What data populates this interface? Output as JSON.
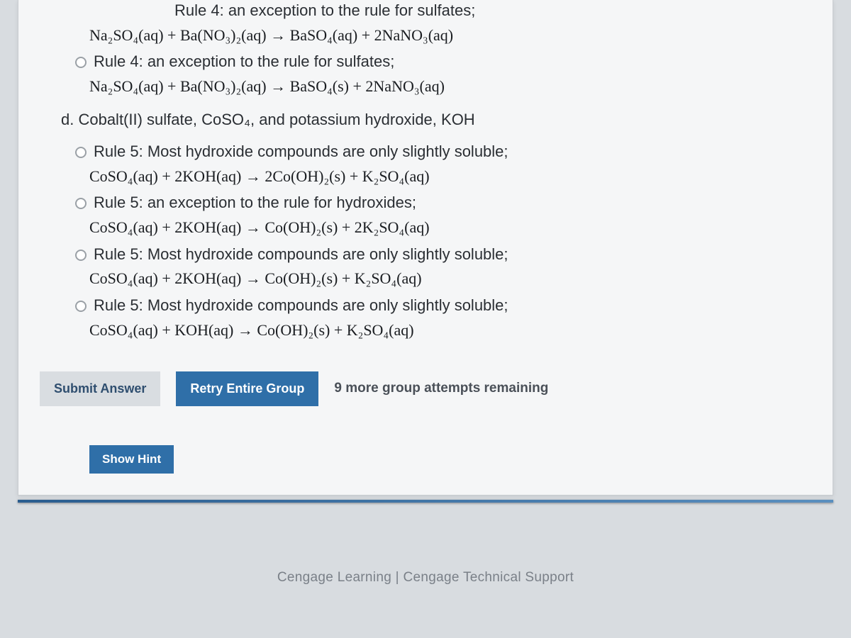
{
  "partial_top": "Rule 4: an exception to the rule for sulfates;",
  "eq_c1": "Na₂SO₄(aq) + Ba(NO₃)₂(aq) → BaSO₄(aq) + 2NaNO₃(aq)",
  "rule_c2": "Rule 4: an exception to the rule for sulfates;",
  "eq_c2": "Na₂SO₄(aq) + Ba(NO₃)₂(aq) → BaSO₄(s) + 2NaNO₃(aq)",
  "question_d": "d.  Cobalt(II) sulfate, CoSO₄, and potassium hydroxide, KOH",
  "rule_d1": "Rule 5: Most hydroxide compounds are only slightly soluble;",
  "eq_d1": "CoSO₄(aq) + 2KOH(aq) → 2Co(OH)₂(s) + K₂SO₄(aq)",
  "rule_d2": "Rule 5: an exception to the rule for hydroxides;",
  "eq_d2": "CoSO₄(aq) + 2KOH(aq) → Co(OH)₂(s) + 2K₂SO₄(aq)",
  "rule_d3": "Rule 5: Most hydroxide compounds are only slightly soluble;",
  "eq_d3": "CoSO₄(aq) + 2KOH(aq) → Co(OH)₂(s) + K₂SO₄(aq)",
  "rule_d4": "Rule 5: Most hydroxide compounds are only slightly soluble;",
  "eq_d4": "CoSO₄(aq) + KOH(aq) → Co(OH)₂(s) + K₂SO₄(aq)",
  "buttons": {
    "submit": "Submit Answer",
    "retry": "Retry Entire Group",
    "attempts": "9 more group attempts remaining",
    "hint": "Show Hint"
  },
  "footer": {
    "brand": "Cengage Learning",
    "sep": "  |  ",
    "support": "Cengage Technical Support"
  },
  "colors": {
    "page_bg": "#d8dce0",
    "panel_bg": "#f5f6f7",
    "text": "#2a2e33",
    "btn_primary_bg": "#2f6fa8",
    "btn_secondary_bg": "#d9dde1",
    "btn_secondary_fg": "#2f4e6f",
    "divider": "#2a5d8f"
  }
}
